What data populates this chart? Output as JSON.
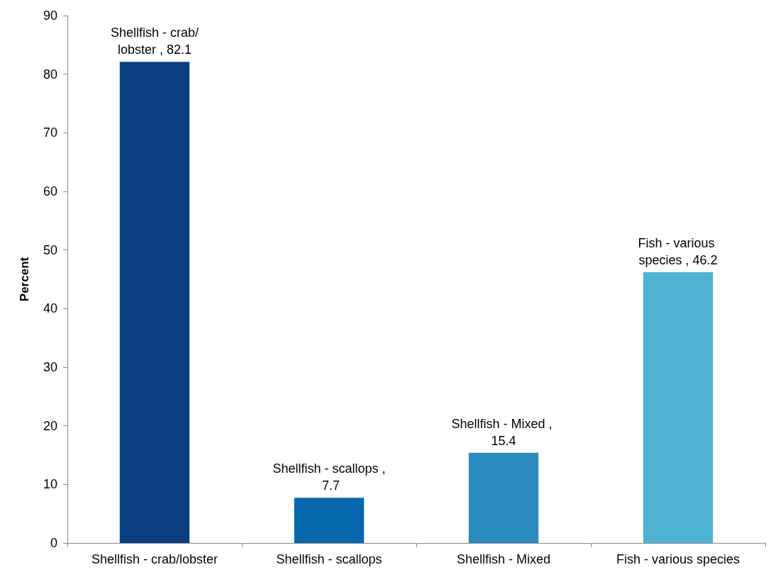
{
  "chart_data": {
    "type": "bar",
    "ylabel": "Percent",
    "categories": [
      "Shellfish - crab/lobster",
      "Shellfish - scallops",
      "Shellfish - Mixed",
      "Fish - various species"
    ],
    "values": [
      82.1,
      7.7,
      15.4,
      46.2
    ],
    "colors": [
      "#0b3f7f",
      "#0868ad",
      "#2b8cbe",
      "#4eb3d3"
    ],
    "value_labels": [
      "Shellfish - crab/lobster , 82.1",
      "Shellfish - scallops , 7.7",
      "Shellfish - Mixed , 15.4",
      "Fish - various species , 46.2"
    ],
    "ylim": [
      0,
      90
    ],
    "yticks": [
      0,
      10,
      20,
      30,
      40,
      50,
      60,
      70,
      80,
      90
    ],
    "grid": false
  }
}
